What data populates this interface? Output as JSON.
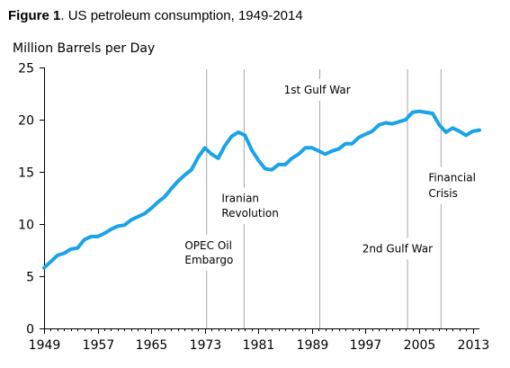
{
  "chart_data": {
    "type": "line",
    "title_prefix": "Figure 1",
    "title": ". US petroleum consumption, 1949-2014",
    "xlabel": "",
    "ylabel": "Million Barrels per Day",
    "xlim": [
      1949,
      2014
    ],
    "ylim": [
      0,
      25
    ],
    "yticks": [
      0,
      5,
      10,
      15,
      20,
      25
    ],
    "xticks": [
      1949,
      1957,
      1965,
      1973,
      1981,
      1989,
      1997,
      2005,
      2013
    ],
    "grid": false,
    "series": [
      {
        "color": "#1aa3e8",
        "x": [
          1949,
          1950,
          1951,
          1952,
          1953,
          1954,
          1955,
          1956,
          1957,
          1958,
          1959,
          1960,
          1961,
          1962,
          1963,
          1964,
          1965,
          1966,
          1967,
          1968,
          1969,
          1970,
          1971,
          1972,
          1973,
          1974,
          1975,
          1976,
          1977,
          1978,
          1979,
          1980,
          1981,
          1982,
          1983,
          1984,
          1985,
          1986,
          1987,
          1988,
          1989,
          1990,
          1991,
          1992,
          1993,
          1994,
          1995,
          1996,
          1997,
          1998,
          1999,
          2000,
          2001,
          2002,
          2003,
          2004,
          2005,
          2006,
          2007,
          2008,
          2009,
          2010,
          2011,
          2012,
          2013,
          2014
        ],
        "y": [
          5.8,
          6.4,
          7.0,
          7.2,
          7.6,
          7.7,
          8.5,
          8.8,
          8.8,
          9.1,
          9.5,
          9.8,
          9.9,
          10.4,
          10.7,
          11.0,
          11.5,
          12.1,
          12.6,
          13.4,
          14.1,
          14.7,
          15.2,
          16.4,
          17.3,
          16.7,
          16.3,
          17.5,
          18.4,
          18.8,
          18.5,
          17.1,
          16.1,
          15.3,
          15.2,
          15.7,
          15.7,
          16.3,
          16.7,
          17.3,
          17.3,
          17.0,
          16.7,
          17.0,
          17.2,
          17.7,
          17.7,
          18.3,
          18.6,
          18.9,
          19.5,
          19.7,
          19.6,
          19.8,
          20.0,
          20.7,
          20.8,
          20.7,
          20.6,
          19.5,
          18.8,
          19.2,
          18.9,
          18.5,
          18.9,
          19.0
        ]
      }
    ],
    "events": [
      {
        "name": "opec-oil-embargo",
        "year": 1973.2,
        "lines": [
          "OPEC Oil",
          "Embargo"
        ],
        "label_year": 1970,
        "label_y": [
          7.6,
          6.2
        ]
      },
      {
        "name": "iranian-revolution",
        "year": 1978.8,
        "lines": [
          "Iranian",
          "Revolution"
        ],
        "label_year": 1975.5,
        "label_y": [
          12.1,
          10.7
        ]
      },
      {
        "name": "first-gulf-war",
        "year": 1990.1,
        "lines": [
          "1st Gulf War"
        ],
        "label_year": 1984.8,
        "label_y": [
          22.5
        ]
      },
      {
        "name": "second-gulf-war",
        "year": 2003.2,
        "lines": [
          "2nd Gulf War"
        ],
        "label_year": 1996.5,
        "label_y": [
          7.3
        ]
      },
      {
        "name": "financial-crisis",
        "year": 2008.2,
        "lines": [
          "Financial",
          "Crisis"
        ],
        "label_year": 2006.4,
        "label_y": [
          14.1,
          12.6
        ]
      }
    ]
  }
}
